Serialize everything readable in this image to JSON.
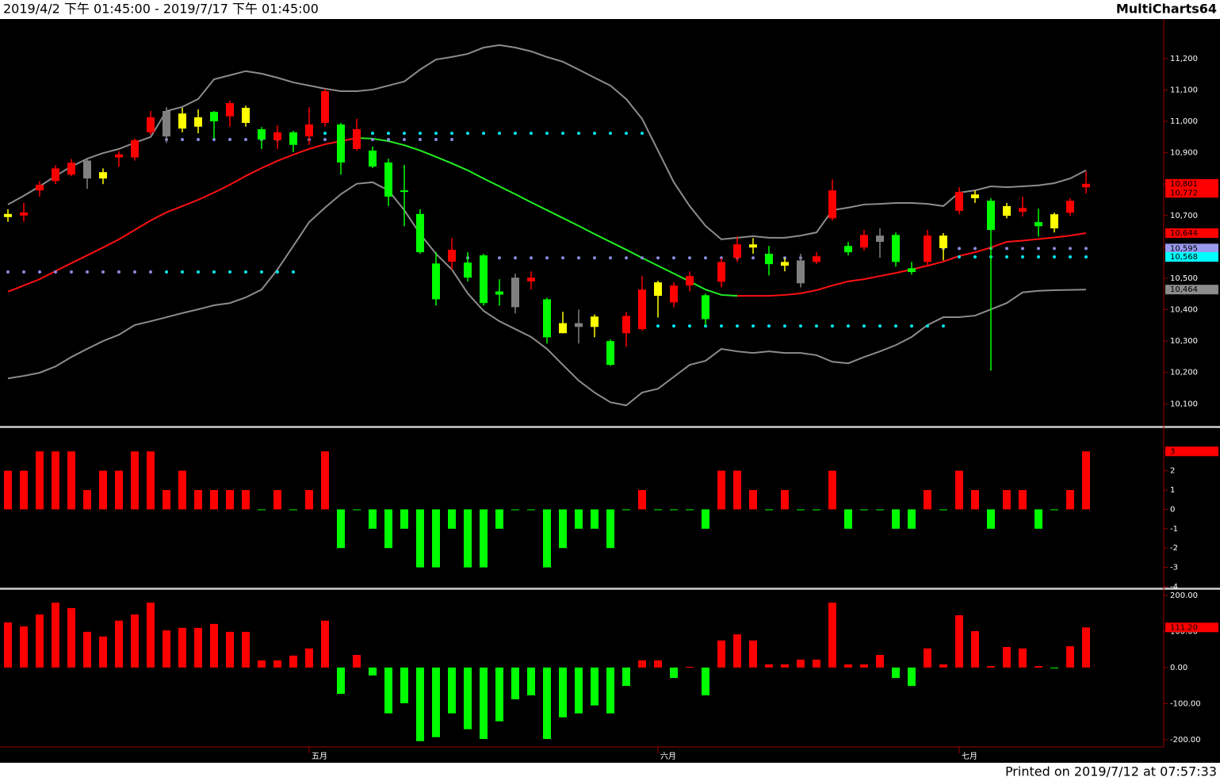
{
  "header": {
    "range": "2019/4/2 下午 01:45:00 - 2019/7/17 下午 01:45:00",
    "app": "MultiCharts64"
  },
  "footer": "Printed on 2019/7/12 at 07:57:33",
  "chart_data": [
    {
      "type": "candlestick",
      "categories": [
        null,
        null,
        null,
        null,
        null,
        null,
        null,
        null,
        null,
        null,
        null,
        null,
        null,
        null,
        null,
        null,
        null,
        null,
        null,
        "五月",
        null,
        null,
        null,
        null,
        null,
        null,
        null,
        null,
        null,
        null,
        null,
        null,
        null,
        null,
        null,
        null,
        null,
        null,
        null,
        null,
        null,
        "六月",
        null,
        null,
        null,
        null,
        null,
        null,
        null,
        null,
        null,
        null,
        null,
        null,
        null,
        null,
        null,
        null,
        null,
        null,
        "七月",
        null,
        null,
        null,
        null,
        null,
        null,
        null,
        null
      ],
      "open": [
        10695,
        10700,
        10780,
        10810,
        10830,
        10875,
        10838,
        10885,
        10885,
        10965,
        11033,
        11025,
        11013,
        11030,
        11016,
        11043,
        10975,
        10940,
        10965,
        10952,
        10995,
        10990,
        10912,
        10907,
        10869,
        10780,
        10705,
        10547,
        10553,
        10550,
        10573,
        10458,
        10502,
        10490,
        10433,
        10357,
        10357,
        10378,
        10300,
        10325,
        10338,
        10487,
        10423,
        10477,
        10446,
        10489,
        10565,
        10608,
        10578,
        10552,
        10557,
        10552,
        10691,
        10603,
        10598,
        10636,
        10638,
        10532,
        10552,
        10636,
        10715,
        10767,
        10747,
        10730,
        10712,
        10679,
        10704,
        10709,
        10790
      ],
      "high": [
        10720,
        10740,
        10810,
        10860,
        10880,
        10880,
        10850,
        10905,
        10945,
        11033,
        11045,
        11043,
        11038,
        11033,
        11066,
        11050,
        10982,
        10987,
        10970,
        11045,
        11104,
        10995,
        11008,
        10920,
        10881,
        10861,
        10720,
        10583,
        10628,
        10583,
        10578,
        10497,
        10515,
        10522,
        10438,
        10393,
        10400,
        10385,
        10305,
        10393,
        10507,
        10492,
        10487,
        10522,
        10451,
        10565,
        10633,
        10628,
        10603,
        10565,
        10578,
        10583,
        10815,
        10616,
        10654,
        10659,
        10646,
        10552,
        10654,
        10644,
        10790,
        10780,
        10755,
        10740,
        10760,
        10722,
        10709,
        10755,
        10840
      ],
      "low": [
        10680,
        10680,
        10760,
        10800,
        10825,
        10785,
        10800,
        10855,
        10875,
        10957,
        10932,
        10965,
        10962,
        10945,
        10983,
        10983,
        10912,
        10912,
        10902,
        10925,
        10983,
        10830,
        10907,
        10851,
        10730,
        10666,
        10578,
        10413,
        10527,
        10490,
        10413,
        10413,
        10388,
        10464,
        10292,
        10325,
        10292,
        10312,
        10221,
        10282,
        10333,
        10375,
        10408,
        10459,
        10350,
        10471,
        10552,
        10578,
        10509,
        10522,
        10471,
        10545,
        10684,
        10573,
        10588,
        10565,
        10537,
        10512,
        10537,
        10557,
        10704,
        10740,
        10206,
        10691,
        10697,
        10633,
        10646,
        10699,
        10770
      ],
      "close": [
        10705,
        10710,
        10798,
        10850,
        10868,
        10818,
        10818,
        10895,
        10940,
        11013,
        10952,
        10977,
        10983,
        11000,
        11058,
        10995,
        10942,
        10965,
        10925,
        10990,
        11096,
        10869,
        10975,
        10856,
        10760,
        10775,
        10583,
        10433,
        10591,
        10502,
        10421,
        10448,
        10408,
        10502,
        10312,
        10325,
        10345,
        10345,
        10224,
        10380,
        10464,
        10444,
        10477,
        10507,
        10370,
        10552,
        10608,
        10598,
        10545,
        10540,
        10484,
        10570,
        10780,
        10583,
        10638,
        10616,
        10552,
        10520,
        10636,
        10596,
        10775,
        10755,
        10654,
        10699,
        10724,
        10666,
        10659,
        10747,
        10801
      ],
      "candle_colors": [
        "#ffff00",
        "#ff0000",
        "#ff0000",
        "#ff0000",
        "#ff0000",
        "#808080",
        "#ffff00",
        "#ff0000",
        "#ff0000",
        "#ff0000",
        "#808080",
        "#ffff00",
        "#ffff00",
        "#00ff00",
        "#ff0000",
        "#ffff00",
        "#00ff00",
        "#ff0000",
        "#00ff00",
        "#ff0000",
        "#ff0000",
        "#00ff00",
        "#ff0000",
        "#00ff00",
        "#00ff00",
        "#00ff00",
        "#00ff00",
        "#00ff00",
        "#ff0000",
        "#00ff00",
        "#00ff00",
        "#00ff00",
        "#808080",
        "#ff0000",
        "#00ff00",
        "#ffff00",
        "#808080",
        "#ffff00",
        "#00ff00",
        "#ff0000",
        "#ff0000",
        "#ffff00",
        "#ff0000",
        "#ff0000",
        "#00ff00",
        "#ff0000",
        "#ff0000",
        "#ffff00",
        "#00ff00",
        "#ffff00",
        "#808080",
        "#ff0000",
        "#ff0000",
        "#00ff00",
        "#ff0000",
        "#808080",
        "#00ff00",
        "#00ff00",
        "#ff0000",
        "#ffff00",
        "#ff0000",
        "#ffff00",
        "#00ff00",
        "#ffff00",
        "#ff0000",
        "#00ff00",
        "#ffff00",
        "#ff0000",
        "#ff0000"
      ],
      "lines": [
        {
          "color": "#8c8c8c",
          "values": [
            10735,
            10763,
            10793,
            10826,
            10856,
            10881,
            10899,
            10912,
            10932,
            10950,
            11033,
            11046,
            11071,
            11134,
            11147,
            11160,
            11152,
            11139,
            11124,
            11114,
            11104,
            11096,
            11096,
            11101,
            11114,
            11127,
            11165,
            11197,
            11205,
            11215,
            11235,
            11243,
            11235,
            11223,
            11205,
            11190,
            11165,
            11139,
            11114,
            11071,
            11008,
            10907,
            10806,
            10730,
            10667,
            10624,
            10629,
            10634,
            10629,
            10629,
            10636,
            10646,
            10717,
            10725,
            10735,
            10737,
            10740,
            10740,
            10737,
            10730,
            10773,
            10780,
            10793,
            10790,
            10793,
            10796,
            10803,
            10818,
            10844
          ]
        },
        {
          "color": "#8c8c8c",
          "values": [
            10181,
            10189,
            10199,
            10219,
            10249,
            10275,
            10300,
            10320,
            10351,
            10363,
            10376,
            10389,
            10401,
            10414,
            10421,
            10439,
            10464,
            10528,
            10603,
            10679,
            10725,
            10768,
            10801,
            10806,
            10780,
            10717,
            10641,
            10578,
            10528,
            10452,
            10396,
            10363,
            10338,
            10313,
            10275,
            10224,
            10174,
            10136,
            10105,
            10095,
            10136,
            10148,
            10186,
            10224,
            10237,
            10275,
            10267,
            10262,
            10267,
            10262,
            10262,
            10255,
            10234,
            10229,
            10249,
            10267,
            10287,
            10313,
            10351,
            10376,
            10376,
            10381,
            10401,
            10421,
            10455,
            10460,
            10462,
            10463,
            10464
          ]
        },
        {
          "up_color": "#ff1010",
          "down_color": "#22ee22",
          "values": [
            10457,
            10477,
            10497,
            10523,
            10548,
            10573,
            10598,
            10624,
            10654,
            10684,
            10710,
            10730,
            10750,
            10773,
            10798,
            10826,
            10851,
            10874,
            10894,
            10912,
            10927,
            10937,
            10947,
            10945,
            10937,
            10924,
            10907,
            10887,
            10866,
            10844,
            10818,
            10793,
            10768,
            10742,
            10717,
            10692,
            10667,
            10641,
            10616,
            10591,
            10565,
            10540,
            10515,
            10490,
            10464,
            10447,
            10444,
            10444,
            10444,
            10447,
            10452,
            10462,
            10477,
            10490,
            10497,
            10507,
            10517,
            10528,
            10540,
            10553,
            10571,
            10583,
            10598,
            10616,
            10620,
            10625,
            10630,
            10636,
            10644
          ]
        }
      ],
      "levels": [
        {
          "value": 10520,
          "start": 0,
          "end": 9,
          "color": "#8a8ae0"
        },
        {
          "value": 10520,
          "start": 10,
          "end": 18,
          "color": "#00e8f0"
        },
        {
          "value": 10942,
          "start": 10,
          "end": 28,
          "color": "#8a8ae0"
        },
        {
          "value": 10962,
          "start": 20,
          "end": 40,
          "color": "#00e8f0"
        },
        {
          "value": 10565,
          "start": 29,
          "end": 51,
          "color": "#8a8ae0"
        },
        {
          "value": 10348,
          "start": 41,
          "end": 59,
          "color": "#00e8f0"
        },
        {
          "value": 10595,
          "start": 59,
          "end": 68,
          "color": "#8a8ae0"
        },
        {
          "value": 10568,
          "start": 60,
          "end": 68,
          "color": "#00e8f0"
        }
      ],
      "markers": [
        {
          "value": 10801,
          "label": "10,801",
          "color": "#ff0000"
        },
        {
          "value": 10772,
          "label": "10,772",
          "color": "#ff0000"
        },
        {
          "value": 10644,
          "label": "10,644",
          "color": "#ff0000"
        },
        {
          "value": 10595,
          "label": "10,595",
          "color": "#9999ee"
        },
        {
          "value": 10568,
          "label": "10,568",
          "color": "#00ffff"
        },
        {
          "value": 10464,
          "label": "10,464",
          "color": "#8c8c8c"
        }
      ],
      "ylim": [
        10030,
        11326
      ],
      "yticks": [
        {
          "value": 11200,
          "label": "11,200"
        },
        {
          "value": 11100,
          "label": "11,100"
        },
        {
          "value": 11000,
          "label": "11,000"
        },
        {
          "value": 10900,
          "label": "10,900"
        },
        {
          "value": 10800,
          "label": "10,800"
        },
        {
          "value": 10700,
          "label": "10,700"
        },
        {
          "value": 10600,
          "label": "10,600"
        },
        {
          "value": 10500,
          "label": "10,500"
        },
        {
          "value": 10400,
          "label": "10,400"
        },
        {
          "value": 10300,
          "label": "10,300"
        },
        {
          "value": 10200,
          "label": "10,200"
        },
        {
          "value": 10100,
          "label": "10,100"
        }
      ]
    },
    {
      "type": "bar",
      "values": [
        2,
        2,
        3,
        3,
        3,
        1,
        2,
        2,
        3,
        3,
        1,
        2,
        1,
        1,
        1,
        1,
        0,
        1,
        0,
        1,
        3,
        -2,
        0,
        -1,
        -2,
        -1,
        -3,
        -3,
        -1,
        -3,
        -3,
        -1,
        0,
        0,
        -3,
        -2,
        -1,
        -1,
        -2,
        0,
        1,
        0,
        0,
        0,
        -1,
        2,
        2,
        1,
        0,
        1,
        0,
        0,
        2,
        -1,
        0,
        0,
        -1,
        -1,
        1,
        0,
        2,
        1,
        -1,
        1,
        1,
        -1,
        0,
        1,
        3
      ],
      "up_color": "#ff0000",
      "down_color": "#00ff00",
      "markers": [
        {
          "value": 3,
          "color": "#ff0000"
        }
      ],
      "ylim": [
        -4,
        4.2
      ],
      "yticks": [
        3,
        2,
        1,
        0,
        -1,
        -2,
        -3,
        -4
      ]
    },
    {
      "type": "bar",
      "values": [
        125,
        114,
        147,
        180,
        165,
        99,
        86,
        130,
        147,
        180,
        103,
        110,
        110,
        121,
        99,
        99,
        20,
        20,
        33,
        53,
        130,
        -73,
        35,
        -22,
        -127,
        -99,
        -204,
        -193,
        -127,
        -171,
        -198,
        -149,
        -88,
        -77,
        -198,
        -138,
        -127,
        -105,
        -127,
        -51,
        20,
        20,
        -29,
        2,
        -77,
        75,
        92,
        75,
        9,
        9,
        22,
        22,
        180,
        9,
        9,
        35,
        -29,
        -51,
        53,
        9,
        145,
        101,
        4,
        57,
        53,
        4,
        -2,
        59,
        111.2
      ],
      "up_color": "#ff0000",
      "down_color": "#00ff00",
      "markers": [
        {
          "value": 111.2,
          "label": "111.20",
          "color": "#ff0000"
        }
      ],
      "ylim": [
        -220,
        213
      ],
      "yticks": [
        {
          "value": 200,
          "label": "200.00"
        },
        {
          "value": 100,
          "label": "100.00"
        },
        {
          "value": 0,
          "label": "0.00"
        },
        {
          "value": -100,
          "label": "-100.00"
        },
        {
          "value": -200,
          "label": "-200.00"
        }
      ]
    }
  ]
}
